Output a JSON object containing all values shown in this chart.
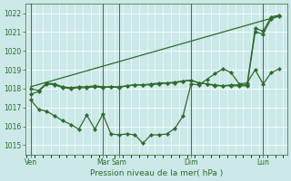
{
  "xlabel": "Pression niveau de la mer( hPa )",
  "bg_color": "#cce8e8",
  "grid_color": "#ffffff",
  "line_color": "#2d6b2d",
  "ylim": [
    1014.5,
    1022.5
  ],
  "yticks": [
    1015,
    1016,
    1017,
    1018,
    1019,
    1020,
    1021,
    1022
  ],
  "day_labels": [
    "Ven",
    "Mar",
    "Sam",
    "Dim",
    "Lun"
  ],
  "day_positions": [
    0.5,
    9.5,
    11.5,
    20.5,
    29.5
  ],
  "xlim": [
    -0.2,
    32.5
  ],
  "series1_x": [
    0.5,
    1.5,
    2.5,
    3.5,
    4.5,
    5.5,
    6.5,
    7.5,
    8.5,
    9.5,
    10.5,
    11.5,
    12.5,
    13.5,
    14.5,
    15.5,
    16.5,
    17.5,
    18.5,
    19.5,
    20.5,
    21.5,
    22.5,
    23.5,
    24.5,
    25.5,
    26.5,
    27.5,
    28.5,
    29.5,
    30.5,
    31.5
  ],
  "series1_y": [
    1018.0,
    1017.9,
    1018.3,
    1018.25,
    1018.1,
    1018.05,
    1018.1,
    1018.1,
    1018.15,
    1018.1,
    1018.1,
    1018.1,
    1018.15,
    1018.2,
    1018.2,
    1018.25,
    1018.3,
    1018.3,
    1018.35,
    1018.4,
    1018.45,
    1018.3,
    1018.25,
    1018.2,
    1018.15,
    1018.2,
    1018.2,
    1018.2,
    1021.2,
    1021.05,
    1021.8,
    1021.9
  ],
  "series2_x": [
    0.5,
    1.5,
    2.5,
    3.5,
    4.5,
    5.5,
    6.5,
    7.5,
    8.5,
    9.5,
    10.5,
    11.5,
    12.5,
    13.5,
    14.5,
    15.5,
    16.5,
    17.5,
    18.5,
    19.5,
    20.5,
    21.5,
    22.5,
    23.5,
    24.5,
    25.5,
    26.5,
    27.5,
    28.5,
    29.5,
    30.5,
    31.5
  ],
  "series2_y": [
    1017.7,
    1017.85,
    1018.25,
    1018.2,
    1018.05,
    1018.0,
    1018.05,
    1018.05,
    1018.1,
    1018.05,
    1018.1,
    1018.05,
    1018.15,
    1018.2,
    1018.2,
    1018.2,
    1018.25,
    1018.3,
    1018.3,
    1018.4,
    1018.45,
    1018.3,
    1018.25,
    1018.15,
    1018.15,
    1018.15,
    1018.15,
    1018.15,
    1021.0,
    1020.9,
    1021.7,
    1021.85
  ],
  "series3_x": [
    0.5,
    1.5,
    2.5,
    3.5,
    4.5,
    5.5,
    6.5,
    7.5,
    8.5,
    9.5,
    10.5,
    11.5,
    12.5,
    13.5,
    14.5,
    15.5,
    16.5,
    17.5,
    18.5,
    19.5,
    20.5,
    21.5,
    22.5,
    23.5,
    24.5,
    25.5,
    26.5,
    27.5,
    28.5,
    29.5,
    30.5,
    31.5
  ],
  "series3_y": [
    1017.4,
    1016.9,
    1016.8,
    1016.55,
    1016.3,
    1016.1,
    1015.85,
    1016.6,
    1015.85,
    1016.65,
    1015.6,
    1015.55,
    1015.6,
    1015.55,
    1015.1,
    1015.55,
    1015.55,
    1015.6,
    1015.9,
    1016.55,
    1018.25,
    1018.2,
    1018.5,
    1018.8,
    1019.05,
    1018.85,
    1018.25,
    1018.3,
    1019.0,
    1018.25,
    1018.85,
    1019.05
  ],
  "series4_x": [
    0.5,
    31.5
  ],
  "series4_y": [
    1018.1,
    1021.85
  ],
  "marker": "D",
  "markersize": 2.2
}
